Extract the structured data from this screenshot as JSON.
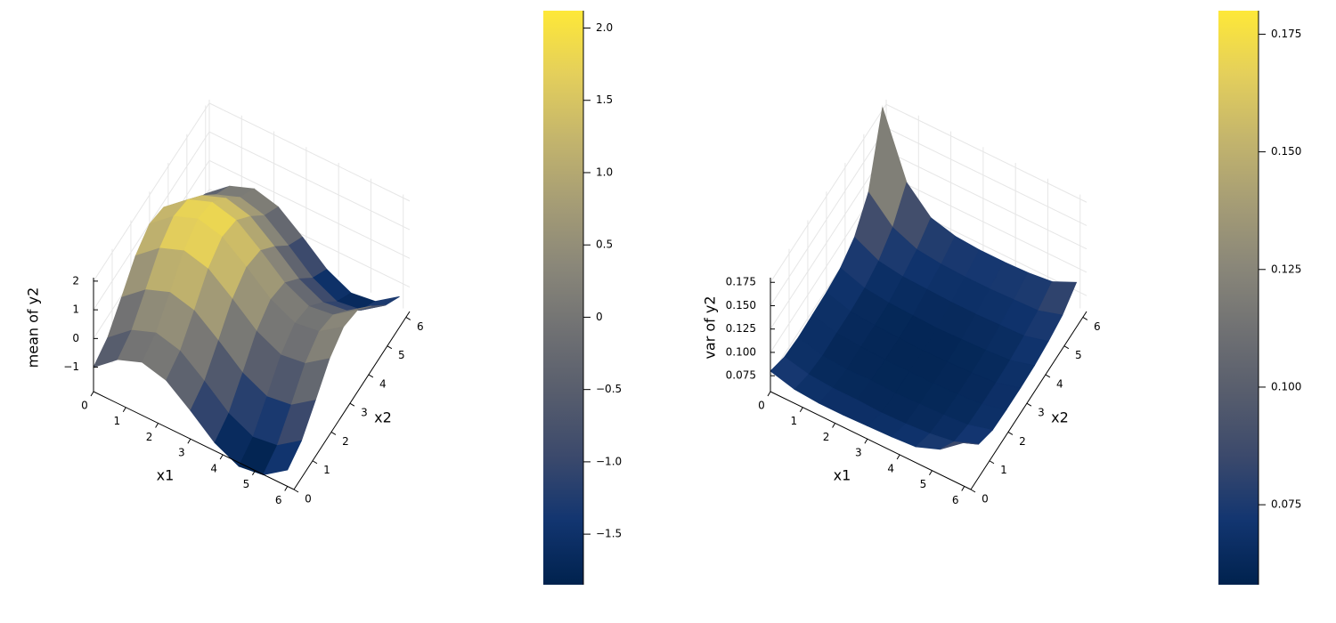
{
  "chart_data": [
    {
      "type": "surface",
      "x_label": "x1",
      "y_label": "x2",
      "z_label": "mean of y2",
      "x": [
        0,
        0.75,
        1.5,
        2.25,
        3,
        3.75,
        4.5,
        5.25,
        6
      ],
      "y": [
        0,
        0.75,
        1.5,
        2.25,
        3,
        3.75,
        4.5,
        5.25,
        6
      ],
      "z": [
        [
          -1,
          -0.73,
          -0.07,
          0.63,
          0.99,
          0.82,
          0.21,
          -0.51,
          -0.96
        ],
        [
          -0.32,
          -0.05,
          0.61,
          1.31,
          1.67,
          1.5,
          0.89,
          0.17,
          -0.28
        ],
        [
          0,
          0.27,
          0.93,
          1.63,
          1.99,
          1.82,
          1.21,
          0.49,
          0.04
        ],
        [
          -0.22,
          0.05,
          0.71,
          1.41,
          1.77,
          1.6,
          0.99,
          0.27,
          -0.18
        ],
        [
          -0.86,
          -0.59,
          0.07,
          0.77,
          1.13,
          0.96,
          0.35,
          -0.37,
          -0.82
        ],
        [
          -1.57,
          -1.3,
          -0.64,
          0.06,
          0.42,
          0.25,
          -0.36,
          -1.08,
          -1.53
        ],
        [
          -1.98,
          -1.71,
          -1.05,
          -0.35,
          0.01,
          -0.16,
          -0.77,
          -1.49,
          -1.94
        ],
        [
          -1.86,
          -1.59,
          -0.93,
          -0.23,
          0.13,
          -0.04,
          -0.65,
          -1.37,
          -1.82
        ],
        [
          -1.28,
          -1.01,
          -0.35,
          0.35,
          0.71,
          0.54,
          -0.07,
          -0.79,
          -1.24
        ]
      ],
      "xlim": [
        0,
        6.2
      ],
      "ylim": [
        0,
        6.2
      ],
      "zlim": [
        -1.85,
        2.12
      ],
      "xticks": [
        0,
        1,
        2,
        3,
        4,
        5,
        6
      ],
      "yticks": [
        0,
        1,
        2,
        3,
        4,
        5,
        6
      ],
      "zticks": [
        {
          "value": -1,
          "label": "−1"
        },
        0,
        1,
        2
      ],
      "clim": [
        -1.85,
        2.12
      ],
      "colorbar_ticks": [
        {
          "value": -1.5,
          "label": "−1.5"
        },
        {
          "value": -1,
          "label": "−1.0"
        },
        {
          "value": -0.5,
          "label": "−0.5"
        },
        0,
        0.5,
        {
          "value": 1,
          "label": "1.0"
        },
        1.5,
        {
          "value": 2,
          "label": "2.0"
        }
      ],
      "colormap": [
        "#00224e",
        "#123570",
        "#3b496c",
        "#575d6d",
        "#707173",
        "#8a8779",
        "#a69d75",
        "#c4b56c",
        "#e4cf5b",
        "#fee838"
      ],
      "grid": true
    },
    {
      "type": "surface",
      "x_label": "x1",
      "y_label": "x2",
      "z_label": "var of y2",
      "x": [
        0,
        0.75,
        1.5,
        2.25,
        3,
        3.75,
        4.5,
        5.25,
        6
      ],
      "y": [
        0,
        0.75,
        1.5,
        2.25,
        3,
        3.75,
        4.5,
        5.25,
        6
      ],
      "z": [
        [
          0.08,
          0.072,
          0.07,
          0.071,
          0.072,
          0.075,
          0.085,
          0.11,
          0.178
        ],
        [
          0.073,
          0.066,
          0.063,
          0.064,
          0.064,
          0.066,
          0.072,
          0.085,
          0.11
        ],
        [
          0.071,
          0.064,
          0.061,
          0.062,
          0.062,
          0.063,
          0.068,
          0.074,
          0.085
        ],
        [
          0.071,
          0.064,
          0.062,
          0.061,
          0.061,
          0.062,
          0.067,
          0.071,
          0.078
        ],
        [
          0.072,
          0.063,
          0.061,
          0.061,
          0.06,
          0.061,
          0.066,
          0.07,
          0.076
        ],
        [
          0.073,
          0.064,
          0.062,
          0.061,
          0.061,
          0.062,
          0.066,
          0.07,
          0.076
        ],
        [
          0.075,
          0.066,
          0.063,
          0.062,
          0.062,
          0.063,
          0.067,
          0.071,
          0.077
        ],
        [
          0.085,
          0.07,
          0.065,
          0.064,
          0.064,
          0.065,
          0.068,
          0.072,
          0.08
        ],
        [
          0.105,
          0.08,
          0.072,
          0.071,
          0.071,
          0.072,
          0.075,
          0.08,
          0.092
        ]
      ],
      "xlim": [
        0,
        6.2
      ],
      "ylim": [
        0,
        6.2
      ],
      "zlim": [
        0.058,
        0.18
      ],
      "xticks": [
        0,
        1,
        2,
        3,
        4,
        5,
        6
      ],
      "yticks": [
        0,
        1,
        2,
        3,
        4,
        5,
        6
      ],
      "zticks": [
        0.075,
        {
          "value": 0.1,
          "label": "0.100"
        },
        0.125,
        {
          "value": 0.15,
          "label": "0.150"
        },
        0.175
      ],
      "clim": [
        0.058,
        0.18
      ],
      "colorbar_ticks": [
        0.075,
        {
          "value": 0.1,
          "label": "0.100"
        },
        0.125,
        {
          "value": 0.15,
          "label": "0.150"
        },
        0.175
      ],
      "colormap": [
        "#00224e",
        "#123570",
        "#3b496c",
        "#575d6d",
        "#707173",
        "#8a8779",
        "#a69d75",
        "#c4b56c",
        "#e4cf5b",
        "#fee838"
      ],
      "grid": true
    }
  ]
}
